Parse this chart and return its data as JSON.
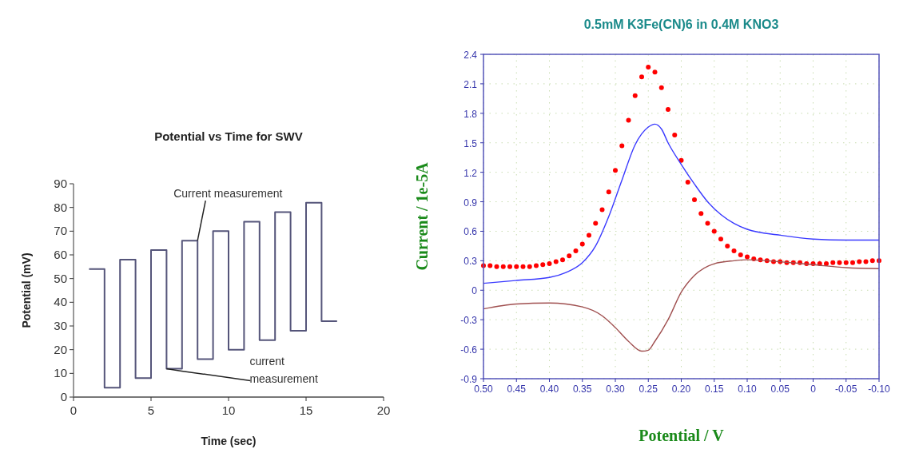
{
  "chart_data": [
    {
      "type": "step",
      "title": "Potential vs Time for SWV",
      "xlabel": "Time (sec)",
      "ylabel": "Potential (mV)",
      "xlim": [
        0,
        20
      ],
      "xticks": [
        0,
        5,
        10,
        15,
        20
      ],
      "ylim": [
        0,
        90
      ],
      "yticks": [
        0,
        10,
        20,
        30,
        40,
        50,
        60,
        70,
        80,
        90
      ],
      "grid": false,
      "marker": "none",
      "series": [
        {
          "color": "#55557a",
          "x": [
            1,
            2,
            3,
            4,
            5,
            6,
            7,
            8,
            9,
            10,
            11,
            12,
            13,
            14,
            15,
            16,
            17
          ],
          "values": [
            54,
            4,
            58,
            8,
            62,
            12,
            66,
            16,
            70,
            20,
            74,
            24,
            78,
            28,
            82,
            32,
            32
          ]
        }
      ],
      "annotations": [
        {
          "text": "Current measurement",
          "x": 8,
          "y": 66
        },
        {
          "text": "current measurement",
          "x": 6,
          "y": 12
        }
      ]
    },
    {
      "type": "line",
      "title": "0.5mM K3Fe(CN)6 in 0.4M KNO3",
      "xlabel": "Potential / V",
      "ylabel": "Current / 1e-5A",
      "xlim": [
        0.5,
        -0.1
      ],
      "xticks": [
        {
          "value": 0.5,
          "label": "0.50"
        },
        {
          "value": 0.45,
          "label": "0.45"
        },
        {
          "value": 0.4,
          "label": "0.40"
        },
        {
          "value": 0.35,
          "label": "0.35"
        },
        {
          "value": 0.3,
          "label": "0.30"
        },
        {
          "value": 0.25,
          "label": "0.25"
        },
        {
          "value": 0.2,
          "label": "0.20"
        },
        {
          "value": 0.15,
          "label": "0.15"
        },
        {
          "value": 0.1,
          "label": "0.10"
        },
        {
          "value": 0.05,
          "label": "0.05"
        },
        0,
        {
          "value": -0.05,
          "label": "-0.05"
        },
        {
          "value": -0.1,
          "label": "-0.10"
        }
      ],
      "ylim": [
        -0.9,
        2.4
      ],
      "yticks": [
        -0.9,
        -0.6,
        -0.3,
        0,
        0.3,
        0.6,
        0.9,
        1.2,
        1.5,
        1.8,
        2.1,
        2.4
      ],
      "grid": true,
      "series": [
        {
          "type": "scatter",
          "marker": "circle",
          "color": "#ff0000",
          "x": [
            0.5,
            0.49,
            0.48,
            0.47,
            0.46,
            0.45,
            0.44,
            0.43,
            0.42,
            0.41,
            0.4,
            0.39,
            0.38,
            0.37,
            0.36,
            0.35,
            0.34,
            0.33,
            0.32,
            0.31,
            0.3,
            0.29,
            0.28,
            0.27,
            0.26,
            0.25,
            0.24,
            0.23,
            0.22,
            0.21,
            0.2,
            0.19,
            0.18,
            0.17,
            0.16,
            0.15,
            0.14,
            0.13,
            0.12,
            0.11,
            0.1,
            0.09,
            0.08,
            0.07,
            0.06,
            0.05,
            0.04,
            0.03,
            0.02,
            0.01,
            0,
            -0.01,
            -0.02,
            -0.03,
            -0.04,
            -0.05,
            -0.06,
            -0.07,
            -0.08,
            -0.09,
            -0.1
          ],
          "values": [
            0.25,
            0.25,
            0.24,
            0.24,
            0.24,
            0.24,
            0.24,
            0.24,
            0.25,
            0.26,
            0.27,
            0.29,
            0.31,
            0.35,
            0.4,
            0.47,
            0.56,
            0.68,
            0.82,
            1.0,
            1.22,
            1.47,
            1.73,
            1.98,
            2.17,
            2.27,
            2.22,
            2.06,
            1.84,
            1.58,
            1.32,
            1.1,
            0.92,
            0.78,
            0.68,
            0.6,
            0.52,
            0.45,
            0.4,
            0.36,
            0.34,
            0.32,
            0.31,
            0.3,
            0.29,
            0.29,
            0.28,
            0.28,
            0.28,
            0.27,
            0.27,
            0.27,
            0.27,
            0.28,
            0.28,
            0.28,
            0.28,
            0.29,
            0.29,
            0.3,
            0.3
          ]
        },
        {
          "type": "line",
          "color": "#3a3aff",
          "x": [
            0.5,
            0.45,
            0.4,
            0.375,
            0.35,
            0.33,
            0.31,
            0.29,
            0.27,
            0.25,
            0.24,
            0.23,
            0.22,
            0.2,
            0.18,
            0.16,
            0.14,
            0.12,
            0.1,
            0.05,
            0,
            -0.05,
            -0.1
          ],
          "values": [
            0.07,
            0.1,
            0.13,
            0.18,
            0.28,
            0.45,
            0.75,
            1.12,
            1.48,
            1.66,
            1.69,
            1.64,
            1.5,
            1.28,
            1.08,
            0.9,
            0.77,
            0.68,
            0.62,
            0.56,
            0.52,
            0.51,
            0.51
          ]
        },
        {
          "type": "line",
          "color": "#a05050",
          "x": [
            0.5,
            0.45,
            0.4,
            0.35,
            0.32,
            0.3,
            0.28,
            0.26,
            0.25,
            0.24,
            0.22,
            0.2,
            0.18,
            0.15,
            0.12,
            0.1,
            0.05,
            0,
            -0.05,
            -0.1
          ],
          "values": [
            -0.19,
            -0.14,
            -0.13,
            -0.17,
            -0.26,
            -0.38,
            -0.52,
            -0.62,
            -0.61,
            -0.52,
            -0.3,
            -0.02,
            0.15,
            0.27,
            0.3,
            0.31,
            0.29,
            0.26,
            0.23,
            0.22
          ]
        }
      ]
    }
  ]
}
